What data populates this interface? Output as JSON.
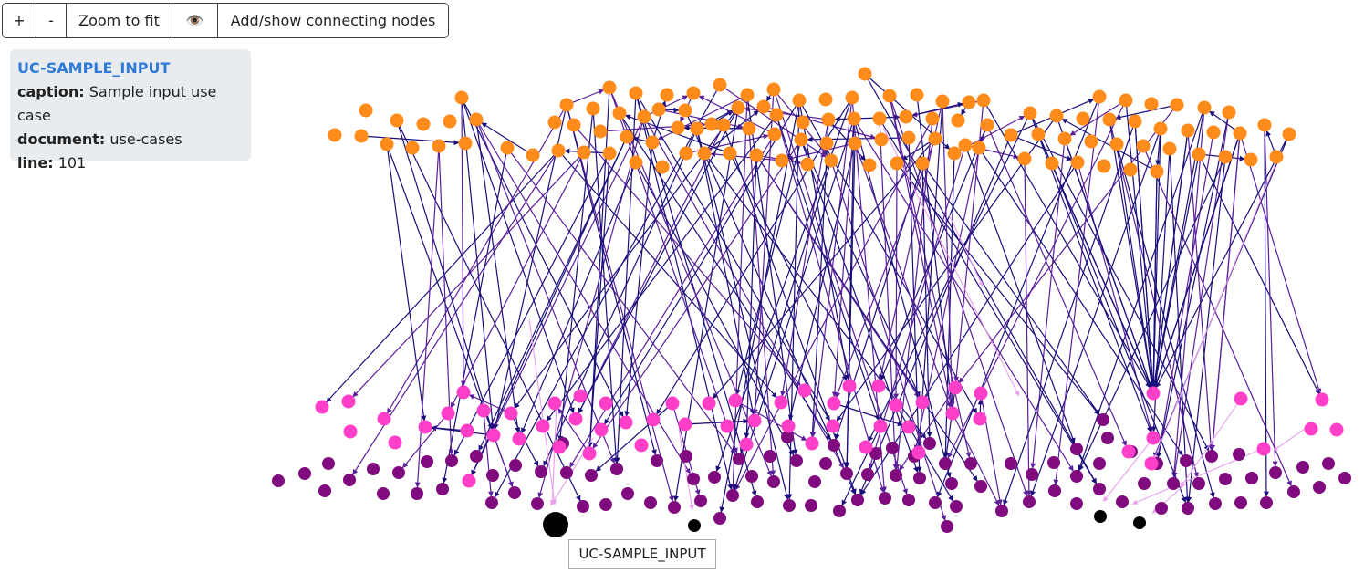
{
  "toolbar": {
    "zoom_in_label": "+",
    "zoom_out_label": "-",
    "zoom_fit_label": "Zoom to fit",
    "eye_icon": "eye-icon",
    "eye_glyph": "👁️",
    "connect_label": "Add/show connecting nodes"
  },
  "info": {
    "title": "UC-SAMPLE_INPUT",
    "caption_key": "caption:",
    "caption_value": "Sample input use case",
    "document_key": "document:",
    "document_value": "use-cases",
    "line_key": "line:",
    "line_value": "101"
  },
  "tooltip": {
    "label": "UC-SAMPLE_INPUT"
  },
  "graph": {
    "colors": {
      "orange_node": "#ff8c1a",
      "pink_node": "#ff3fc8",
      "purple_node": "#7f0b7f",
      "selected_node": "#000000",
      "edge_dark": "#1a0f7a",
      "edge_mid": "#5a1f9a",
      "edge_light": "#e8a0ec"
    }
  }
}
